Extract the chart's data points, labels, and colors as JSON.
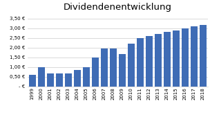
{
  "title": "Dividendenentwicklung",
  "years": [
    "1999",
    "2000",
    "2001",
    "2002",
    "2003",
    "2004",
    "2005",
    "2006",
    "2007",
    "2008",
    "2009",
    "2010",
    "2011",
    "2012",
    "2013",
    "2014",
    "2015",
    "2016",
    "2017",
    "2018"
  ],
  "values": [
    0.6,
    1.0,
    0.65,
    0.68,
    0.67,
    0.83,
    1.0,
    1.5,
    1.95,
    1.95,
    1.65,
    2.2,
    2.5,
    2.6,
    2.7,
    2.8,
    2.9,
    3.0,
    3.1,
    3.17
  ],
  "bar_color": "#3F6CB5",
  "ylim": [
    0,
    3.75
  ],
  "yticks": [
    0,
    0.5,
    1.0,
    1.5,
    2.0,
    2.5,
    3.0,
    3.5
  ],
  "ytick_labels": [
    "- €",
    "0,50 €",
    "1,00 €",
    "1,50 €",
    "2,00 €",
    "2,50 €",
    "3,00 €",
    "3,50 €"
  ],
  "background_color": "#ffffff",
  "grid_color": "#cccccc",
  "title_fontsize": 9.5,
  "tick_fontsize": 5.0,
  "fig_width": 3.04,
  "fig_height": 1.66,
  "dpi": 100
}
